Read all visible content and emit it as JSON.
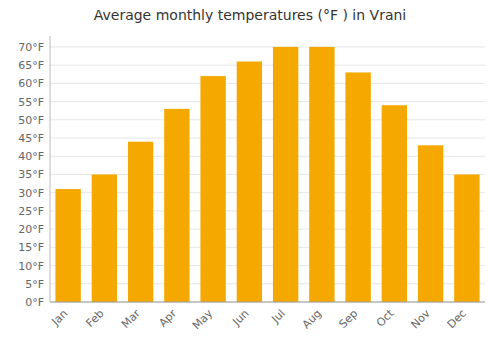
{
  "chart_data": {
    "type": "bar",
    "title": "Average monthly temperatures (°F ) in Vrani",
    "categories": [
      "Jan",
      "Feb",
      "Mar",
      "Apr",
      "May",
      "Jun",
      "Jul",
      "Aug",
      "Sep",
      "Oct",
      "Nov",
      "Dec"
    ],
    "values": [
      31,
      35,
      44,
      53,
      62,
      66,
      70,
      70,
      63,
      54,
      43,
      35
    ],
    "color": "#F5A800",
    "ylim": [
      0,
      73
    ],
    "yticks": [
      {
        "value": 0,
        "label": "0°F"
      },
      {
        "value": 5,
        "label": "5°F"
      },
      {
        "value": 10,
        "label": "10°F"
      },
      {
        "value": 15,
        "label": "15°F"
      },
      {
        "value": 20,
        "label": "20°F"
      },
      {
        "value": 25,
        "label": "25°F"
      },
      {
        "value": 30,
        "label": "30°F"
      },
      {
        "value": 35,
        "label": "35°F"
      },
      {
        "value": 40,
        "label": "40°F"
      },
      {
        "value": 45,
        "label": "45°F"
      },
      {
        "value": 50,
        "label": "50°F"
      },
      {
        "value": 55,
        "label": "55°F"
      },
      {
        "value": 60,
        "label": "60°F"
      },
      {
        "value": 65,
        "label": "65°F"
      },
      {
        "value": 70,
        "label": "70°F"
      }
    ],
    "grid": true
  }
}
